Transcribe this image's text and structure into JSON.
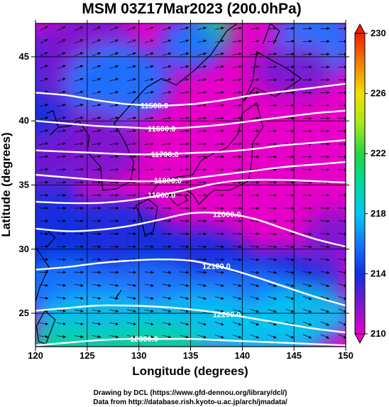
{
  "chart_data": {
    "type": "heatmap",
    "title": "MSM 03Z17Mar2023 (200.0hPa)",
    "xlabel": "Longitude (degrees)",
    "ylabel": "Latitude  (degrees)",
    "xlim": [
      120,
      150
    ],
    "ylim": [
      22.4,
      47.6
    ],
    "xticks": [
      120,
      125,
      130,
      135,
      140,
      145,
      150
    ],
    "yticks": [
      25,
      30,
      35,
      40,
      45
    ],
    "colorbar": {
      "min": 210,
      "max": 230,
      "ticks": [
        210,
        214,
        218,
        222,
        226,
        230
      ],
      "colors": [
        "#e600c8",
        "#7a18d0",
        "#1030e0",
        "#1478ff",
        "#00c8f0",
        "#00d8a0",
        "#20d840",
        "#a8e818",
        "#f0e000",
        "#f08000",
        "#f02000"
      ]
    },
    "contours": [
      {
        "label": "11500.0",
        "lat": [
          42.2,
          42.0,
          41.6,
          41.3,
          41.2,
          41.3,
          41.6,
          42.0,
          42.3,
          42.6,
          42.9
        ],
        "label_lon": 131.5
      },
      {
        "label": "11600.0",
        "lat": [
          40.0,
          39.8,
          39.6,
          39.5,
          39.4,
          39.5,
          39.7,
          40.0,
          40.3,
          40.6,
          40.8
        ],
        "label_lon": 132.2
      },
      {
        "label": "11700.0",
        "lat": [
          37.7,
          37.6,
          37.5,
          37.4,
          37.4,
          37.5,
          37.6,
          37.8,
          38.1,
          38.3,
          38.5
        ],
        "label_lon": 132.5
      },
      {
        "label": "11800.0",
        "lat": [
          35.8,
          35.6,
          35.4,
          35.3,
          35.3,
          35.5,
          35.8,
          36.1,
          36.4,
          36.6,
          36.8
        ],
        "label_lon": 132.8
      },
      {
        "label": "11900.0",
        "lat": [
          33.7,
          33.6,
          33.6,
          33.8,
          34.2,
          34.7,
          35.2,
          35.4,
          35.4,
          35.3,
          35.2
        ],
        "label_lon": 132.2
      },
      {
        "label": "12000.0",
        "lat": [
          31.6,
          31.4,
          31.5,
          31.8,
          32.3,
          32.8,
          32.8,
          32.4,
          31.6,
          30.8,
          30.2
        ],
        "label_lon": 138.5
      },
      {
        "label": "12100.0",
        "lat": [
          28.4,
          28.6,
          28.9,
          29.1,
          29.2,
          29.1,
          28.6,
          27.9,
          27.1,
          26.3,
          25.6
        ],
        "label_lon": 137.5
      },
      {
        "label": "12200.0",
        "lat": [
          25.2,
          25.4,
          25.6,
          25.6,
          25.5,
          25.3,
          25.0,
          24.6,
          24.2,
          23.8,
          23.5
        ],
        "label_lon": 138.5
      },
      {
        "label": "12300.0",
        "lat": [
          22.5,
          22.7,
          22.9,
          23.0,
          23.0,
          23.0,
          22.9,
          22.8,
          22.7,
          22.6,
          22.5
        ],
        "label_lon": 130.5
      }
    ]
  },
  "credits": {
    "line1": "Drawing by DCL (https://www.gfd-dennou.org/library/dcl/)",
    "line2": "Data from http://database.rish.kyoto-u.ac.jp/arch/jmadata/"
  }
}
